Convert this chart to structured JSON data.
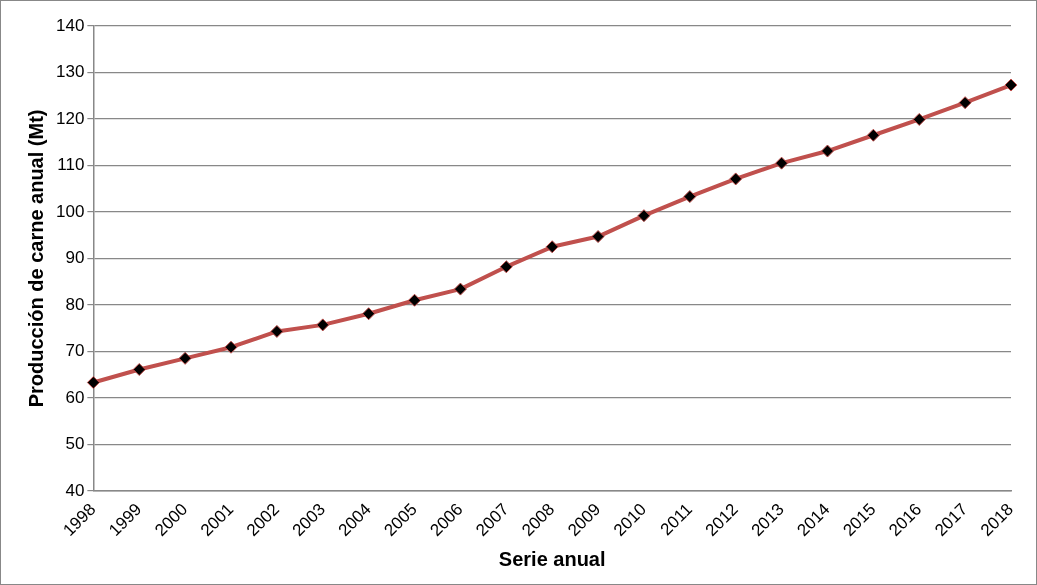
{
  "chart_data": {
    "type": "line",
    "xlabel": "Serie anual",
    "ylabel": "Producción de carne anual (Mt)",
    "categories": [
      "1998",
      "1999",
      "2000",
      "2001",
      "2002",
      "2003",
      "2004",
      "2005",
      "2006",
      "2007",
      "2008",
      "2009",
      "2010",
      "2011",
      "2012",
      "2013",
      "2014",
      "2015",
      "2016",
      "2017",
      "2018"
    ],
    "series": [
      {
        "color": "#c0504d",
        "values": [
          63.3,
          66.1,
          68.5,
          70.9,
          74.3,
          75.7,
          78.1,
          81.0,
          83.4,
          88.2,
          92.5,
          94.7,
          99.2,
          103.3,
          107.1,
          110.5,
          113.1,
          116.5,
          119.9,
          123.5,
          127.3
        ]
      }
    ],
    "ylim": [
      40,
      140
    ],
    "yticks": [
      40,
      50,
      60,
      70,
      80,
      90,
      100,
      110,
      120,
      130,
      140
    ],
    "grid": "y",
    "marker": "diamond",
    "line_style": "solid",
    "legend": false
  }
}
